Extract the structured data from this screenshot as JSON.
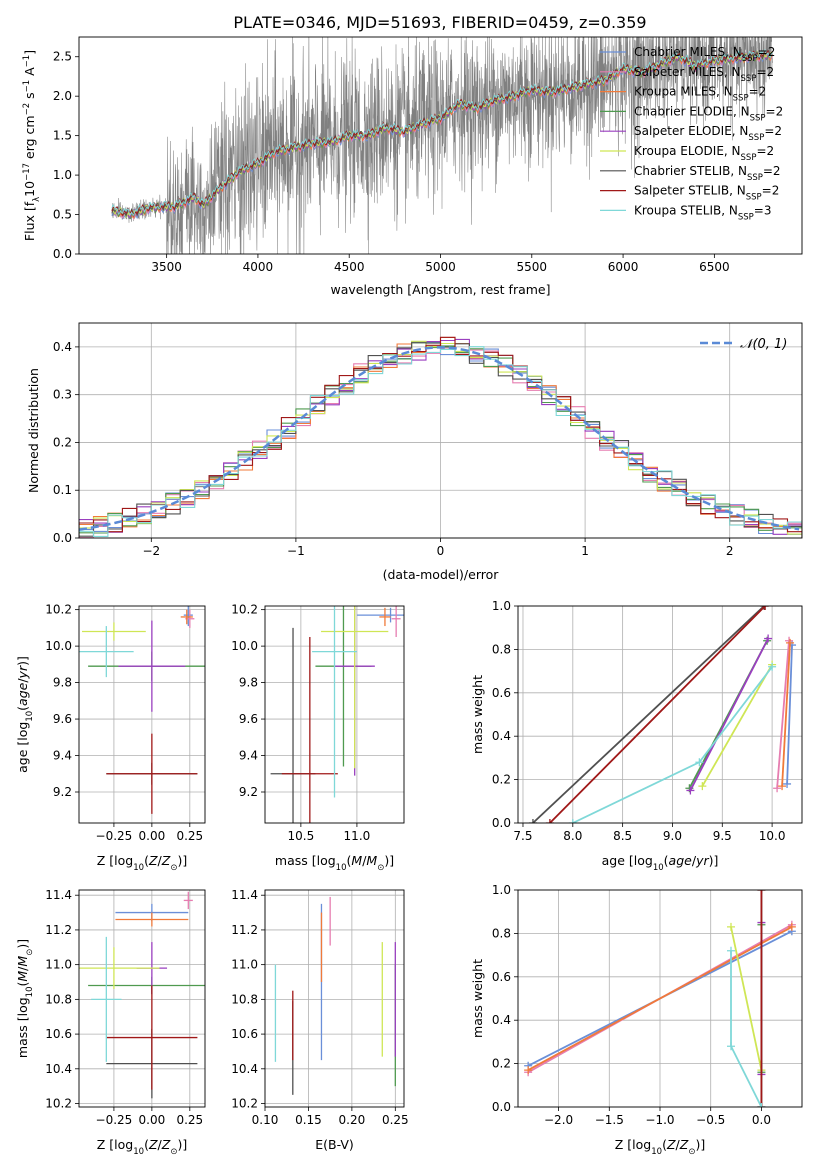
{
  "figure_title": "PLATE=0346, MJD=51693, FIBERID=0459, z=0.359",
  "colors": {
    "chabrier_miles": "#6a8fd8",
    "salpeter_miles": "#e67db0",
    "kroupa_miles": "#f07a3a",
    "chabrier_elodie": "#4f9a4f",
    "salpeter_elodie": "#9a3fbf",
    "kroupa_elodie": "#cfe655",
    "chabrier_stelib": "#505050",
    "salpeter_stelib": "#a01818",
    "kroupa_stelib": "#7fd8d8",
    "spectrum": "#808080",
    "normal_curve": "#5a8ad6",
    "grid": "#b0b0b0"
  },
  "chart_data": [
    {
      "id": "spectrum",
      "type": "line",
      "title": "PLATE=0346, MJD=51693, FIBERID=0459, z=0.359",
      "xlabel": "wavelength [Angstrom, rest frame]",
      "ylabel": "Flux [f_λ 10^-17 erg cm^-2 s^-1 A^-1]",
      "xlim": [
        3020,
        6980
      ],
      "ylim": [
        0,
        2.75
      ],
      "xticks": [
        3500,
        4000,
        4500,
        5000,
        5500,
        6000,
        6500
      ],
      "yticks": [
        0.0,
        0.5,
        1.0,
        1.5,
        2.0,
        2.5
      ],
      "grid": false,
      "legend_position": "upper right",
      "legend": [
        "Chabrier MILES, N_SSP=2",
        "Salpeter MILES, N_SSP=2",
        "Kroupa MILES, N_SSP=2",
        "Chabrier ELODIE, N_SSP=2",
        "Salpeter ELODIE, N_SSP=2",
        "Kroupa ELODIE, N_SSP=2",
        "Chabrier STELIB, N_SSP=2",
        "Salpeter STELIB, N_SSP=2",
        "Kroupa STELIB, N_SSP=3"
      ],
      "observed_range": [
        3200,
        6820
      ],
      "model_continuum": {
        "x": [
          3200,
          3300,
          3400,
          3500,
          3550,
          3650,
          3700,
          3800,
          3900,
          4000,
          4100,
          4200,
          4300,
          4400,
          4500,
          4600,
          4700,
          4800,
          4900,
          5000,
          5100,
          5200,
          5300,
          5400,
          5500,
          5600,
          5700,
          5800,
          5900,
          6000,
          6100,
          6200,
          6300,
          6400,
          6500,
          6600,
          6700,
          6800
        ],
        "y": [
          0.55,
          0.5,
          0.58,
          0.6,
          0.6,
          0.72,
          0.62,
          0.85,
          1.05,
          1.15,
          1.3,
          1.35,
          1.4,
          1.42,
          1.5,
          1.5,
          1.6,
          1.55,
          1.65,
          1.72,
          1.9,
          1.85,
          1.95,
          2.0,
          2.08,
          2.05,
          2.1,
          2.15,
          2.2,
          2.35,
          2.3,
          2.4,
          2.5,
          2.38,
          2.45,
          2.48,
          2.5,
          2.52
        ]
      }
    },
    {
      "id": "residuals",
      "type": "histogram",
      "xlabel": "(data-model)/error",
      "ylabel": "Normed distribution",
      "xlim": [
        -2.5,
        2.5
      ],
      "ylim": [
        0,
        0.45
      ],
      "xticks": [
        -2,
        -1,
        0,
        1,
        2
      ],
      "yticks": [
        0.0,
        0.1,
        0.2,
        0.3,
        0.4
      ],
      "grid": true,
      "legend_position": "upper right",
      "legend": [
        "𝒩(0, 1)"
      ],
      "bin_width": 0.1
    },
    {
      "id": "age_vs_Z",
      "type": "errorbar",
      "xlabel": "Z [log10(Z/Z⊙)]",
      "ylabel": "age  [log10(age/yr)]",
      "xlim": [
        -0.48,
        0.35
      ],
      "ylim": [
        9.03,
        10.22
      ],
      "xticks": [
        -0.25,
        0.0,
        0.25
      ],
      "xtick_labels": [
        "−0.25",
        "0.00",
        "0.25"
      ],
      "yticks": [
        9.2,
        9.4,
        9.6,
        9.8,
        10.0,
        10.2
      ],
      "grid": true,
      "series": [
        {
          "key": "chabrier_miles",
          "points": [
            {
              "x": 0.24,
              "y": 10.17,
              "xe": 0.03,
              "ye": 0.06
            }
          ]
        },
        {
          "key": "salpeter_miles",
          "points": [
            {
              "x": 0.25,
              "y": 10.15,
              "xe": 0.03,
              "ye": 0.05
            }
          ]
        },
        {
          "key": "kroupa_miles",
          "points": [
            {
              "x": 0.23,
              "y": 10.16,
              "xe": 0.04,
              "ye": 0.04
            }
          ]
        },
        {
          "key": "chabrier_elodie",
          "points": [
            {
              "x": 0.0,
              "y": 9.89,
              "xe": 0.42,
              "ye": 0.08
            }
          ]
        },
        {
          "key": "salpeter_elodie",
          "points": [
            {
              "x": 0.0,
              "y": 9.89,
              "xe": 0.22,
              "ye": 0.25
            }
          ]
        },
        {
          "key": "kroupa_elodie",
          "points": [
            {
              "x": -0.25,
              "y": 10.08,
              "xe": 0.21,
              "ye": 0.05
            }
          ]
        },
        {
          "key": "chabrier_stelib",
          "points": [
            {
              "x": 0.0,
              "y": 9.3,
              "xe": 0.3,
              "ye": 0.06
            }
          ]
        },
        {
          "key": "salpeter_stelib",
          "points": [
            {
              "x": 0.0,
              "y": 9.3,
              "xe": 0.3,
              "ye": 0.22
            }
          ]
        },
        {
          "key": "kroupa_stelib",
          "points": [
            {
              "x": -0.3,
              "y": 9.97,
              "xe": 0.18,
              "ye": 0.14
            }
          ]
        }
      ]
    },
    {
      "id": "age_vs_mass",
      "type": "errorbar",
      "xlabel": "mass [log10(M/M⊙)]",
      "ylabel": "",
      "xlim": [
        10.18,
        11.42
      ],
      "ylim": [
        9.03,
        10.22
      ],
      "xticks": [
        10.5,
        11.0
      ],
      "xtick_labels": [
        "10.5",
        "11.0"
      ],
      "yticks": [
        9.2,
        9.4,
        9.6,
        9.8,
        10.0,
        10.2
      ],
      "grid": true,
      "series": [
        {
          "key": "chabrier_miles",
          "points": [
            {
              "x": 11.3,
              "y": 10.17,
              "xe": 0.3,
              "ye": 0.04
            }
          ]
        },
        {
          "key": "salpeter_miles",
          "points": [
            {
              "x": 11.35,
              "y": 10.15,
              "xe": 0.04,
              "ye": 0.1
            }
          ]
        },
        {
          "key": "kroupa_miles",
          "points": [
            {
              "x": 11.25,
              "y": 10.16,
              "xe": 0.05,
              "ye": 0.05
            }
          ]
        },
        {
          "key": "chabrier_elodie",
          "points": [
            {
              "x": 10.88,
              "y": 9.89,
              "xe": 0.25,
              "ye": 0.55
            }
          ]
        },
        {
          "key": "salpeter_elodie",
          "points": [
            {
              "x": 10.98,
              "y": 9.89,
              "xe": 0.18,
              "ye": 0.6
            }
          ]
        },
        {
          "key": "kroupa_elodie",
          "points": [
            {
              "x": 10.98,
              "y": 10.08,
              "xe": 0.3,
              "ye": 0.75
            }
          ]
        },
        {
          "key": "chabrier_stelib",
          "points": [
            {
              "x": 10.43,
              "y": 9.3,
              "xe": 0.2,
              "ye": 0.8
            }
          ]
        },
        {
          "key": "salpeter_stelib",
          "points": [
            {
              "x": 10.58,
              "y": 9.3,
              "xe": 0.25,
              "ye": 0.75
            }
          ]
        },
        {
          "key": "kroupa_stelib",
          "points": [
            {
              "x": 10.8,
              "y": 9.97,
              "xe": 0.2,
              "ye": 0.8
            }
          ]
        }
      ]
    },
    {
      "id": "weight_vs_age",
      "type": "line",
      "xlabel": "age  [log10(age/yr)]",
      "ylabel": "mass weight",
      "xlim": [
        7.45,
        10.3
      ],
      "ylim": [
        0,
        1
      ],
      "xticks": [
        7.5,
        8.0,
        8.5,
        9.0,
        9.5,
        10.0
      ],
      "xtick_labels": [
        "7.5",
        "8.0",
        "8.5",
        "9.0",
        "9.5",
        "10.0"
      ],
      "yticks": [
        0.0,
        0.2,
        0.4,
        0.6,
        0.8,
        1.0
      ],
      "grid": true,
      "series": [
        {
          "key": "chabrier_miles",
          "x": [
            10.15,
            10.2
          ],
          "y": [
            0.18,
            0.82
          ]
        },
        {
          "key": "salpeter_miles",
          "x": [
            10.05,
            10.17
          ],
          "y": [
            0.16,
            0.84
          ]
        },
        {
          "key": "kroupa_miles",
          "x": [
            10.1,
            10.18
          ],
          "y": [
            0.17,
            0.83
          ]
        },
        {
          "key": "chabrier_elodie",
          "x": [
            9.17,
            9.95
          ],
          "y": [
            0.16,
            0.84
          ]
        },
        {
          "key": "salpeter_elodie",
          "x": [
            9.18,
            9.96
          ],
          "y": [
            0.15,
            0.85
          ]
        },
        {
          "key": "kroupa_elodie",
          "x": [
            9.3,
            10.0
          ],
          "y": [
            0.17,
            0.73
          ]
        },
        {
          "key": "chabrier_stelib",
          "x": [
            7.6,
            9.92
          ],
          "y": [
            0.0,
            1.0
          ]
        },
        {
          "key": "salpeter_stelib",
          "x": [
            7.77,
            9.93
          ],
          "y": [
            0.0,
            1.0
          ]
        },
        {
          "key": "kroupa_stelib",
          "x": [
            8.0,
            9.27,
            10.0
          ],
          "y": [
            0.0,
            0.28,
            0.72
          ]
        }
      ]
    },
    {
      "id": "mass_vs_Z",
      "type": "errorbar",
      "xlabel": "Z [log10(Z/Z⊙)]",
      "ylabel": "mass [log10(M/M⊙)]",
      "xlim": [
        -0.48,
        0.35
      ],
      "ylim": [
        10.18,
        11.43
      ],
      "xticks": [
        -0.25,
        0.0,
        0.25
      ],
      "xtick_labels": [
        "−0.25",
        "0.00",
        "0.25"
      ],
      "yticks": [
        10.2,
        10.4,
        10.6,
        10.8,
        11.0,
        11.2,
        11.4
      ],
      "grid": true,
      "series": [
        {
          "key": "chabrier_miles",
          "points": [
            {
              "x": 0.0,
              "y": 11.3,
              "xe": 0.24,
              "ye": 0.05
            }
          ]
        },
        {
          "key": "salpeter_miles",
          "points": [
            {
              "x": 0.24,
              "y": 11.37,
              "xe": 0.03,
              "ye": 0.05
            }
          ]
        },
        {
          "key": "kroupa_miles",
          "points": [
            {
              "x": 0.0,
              "y": 11.26,
              "xe": 0.24,
              "ye": 0.04
            }
          ]
        },
        {
          "key": "chabrier_elodie",
          "points": [
            {
              "x": 0.0,
              "y": 10.88,
              "xe": 0.42,
              "ye": 0.05
            }
          ]
        },
        {
          "key": "salpeter_elodie",
          "points": [
            {
              "x": 0.0,
              "y": 10.98,
              "xe": 0.1,
              "ye": 0.15
            }
          ]
        },
        {
          "key": "kroupa_elodie",
          "points": [
            {
              "x": -0.25,
              "y": 10.98,
              "xe": 0.3,
              "ye": 0.12
            }
          ]
        },
        {
          "key": "chabrier_stelib",
          "points": [
            {
              "x": 0.0,
              "y": 10.43,
              "xe": 0.3,
              "ye": 0.2
            }
          ]
        },
        {
          "key": "salpeter_stelib",
          "points": [
            {
              "x": 0.0,
              "y": 10.58,
              "xe": 0.3,
              "ye": 0.3
            }
          ]
        },
        {
          "key": "kroupa_stelib",
          "points": [
            {
              "x": -0.3,
              "y": 10.8,
              "xe": 0.1,
              "ye": 0.36
            }
          ]
        }
      ]
    },
    {
      "id": "mass_vs_ebv",
      "type": "errorbar",
      "xlabel": "E(B-V)",
      "ylabel": "",
      "xlim": [
        0.1,
        0.26
      ],
      "ylim": [
        10.18,
        11.43
      ],
      "xticks": [
        0.1,
        0.15,
        0.2,
        0.25
      ],
      "xtick_labels": [
        "0.10",
        "0.15",
        "0.20",
        "0.25"
      ],
      "yticks": [
        10.2,
        10.4,
        10.6,
        10.8,
        11.0,
        11.2,
        11.4
      ],
      "grid": true,
      "series": [
        {
          "key": "chabrier_miles",
          "points": [
            {
              "x": 0.165,
              "y": 10.9,
              "xe": 0,
              "ye": 0.45
            }
          ]
        },
        {
          "key": "salpeter_miles",
          "points": [
            {
              "x": 0.175,
              "y": 11.25,
              "xe": 0,
              "ye": 0.14
            }
          ]
        },
        {
          "key": "kroupa_miles",
          "points": [
            {
              "x": 0.165,
              "y": 11.1,
              "xe": 0,
              "ye": 0.2
            }
          ]
        },
        {
          "key": "chabrier_elodie",
          "points": [
            {
              "x": 0.25,
              "y": 10.65,
              "xe": 0,
              "ye": 0.35
            }
          ]
        },
        {
          "key": "salpeter_elodie",
          "points": [
            {
              "x": 0.25,
              "y": 10.8,
              "xe": 0,
              "ye": 0.33
            }
          ]
        },
        {
          "key": "kroupa_elodie",
          "points": [
            {
              "x": 0.235,
              "y": 10.8,
              "xe": 0,
              "ye": 0.33
            }
          ]
        },
        {
          "key": "chabrier_stelib",
          "points": [
            {
              "x": 0.132,
              "y": 10.52,
              "xe": 0,
              "ye": 0.27
            }
          ]
        },
        {
          "key": "salpeter_stelib",
          "points": [
            {
              "x": 0.132,
              "y": 10.65,
              "xe": 0,
              "ye": 0.2
            }
          ]
        },
        {
          "key": "kroupa_stelib",
          "points": [
            {
              "x": 0.112,
              "y": 10.72,
              "xe": 0,
              "ye": 0.28
            }
          ]
        }
      ]
    },
    {
      "id": "weight_vs_Z",
      "type": "line",
      "xlabel": "Z [log10(Z/Z⊙)]",
      "ylabel": "mass weight",
      "xlim": [
        -2.4,
        0.4
      ],
      "ylim": [
        0,
        1
      ],
      "xticks": [
        -2.0,
        -1.5,
        -1.0,
        -0.5,
        0.0
      ],
      "xtick_labels": [
        "−2.0",
        "−1.5",
        "−1.0",
        "−0.5",
        "0.0"
      ],
      "yticks": [
        0.0,
        0.2,
        0.4,
        0.6,
        0.8,
        1.0
      ],
      "grid": true,
      "series": [
        {
          "key": "chabrier_miles",
          "x": [
            -2.3,
            0.3
          ],
          "y": [
            0.19,
            0.81
          ]
        },
        {
          "key": "salpeter_miles",
          "x": [
            -2.3,
            0.3
          ],
          "y": [
            0.16,
            0.84
          ]
        },
        {
          "key": "kroupa_miles",
          "x": [
            -2.3,
            0.3
          ],
          "y": [
            0.17,
            0.83
          ]
        },
        {
          "key": "chabrier_elodie",
          "x": [
            0.0,
            0.0
          ],
          "y": [
            0.16,
            0.84
          ]
        },
        {
          "key": "salpeter_elodie",
          "x": [
            0.0,
            0.0
          ],
          "y": [
            0.15,
            0.85
          ]
        },
        {
          "key": "kroupa_elodie",
          "x": [
            -0.3,
            0.0
          ],
          "y": [
            0.83,
            0.17
          ]
        },
        {
          "key": "chabrier_stelib",
          "x": [
            0.0,
            0.0
          ],
          "y": [
            0.0,
            1.0
          ]
        },
        {
          "key": "salpeter_stelib",
          "x": [
            0.0,
            0.0
          ],
          "y": [
            0.0,
            1.0
          ]
        },
        {
          "key": "kroupa_stelib",
          "x": [
            -0.3,
            -0.3,
            0.0
          ],
          "y": [
            0.72,
            0.28,
            0.0
          ]
        }
      ]
    }
  ]
}
